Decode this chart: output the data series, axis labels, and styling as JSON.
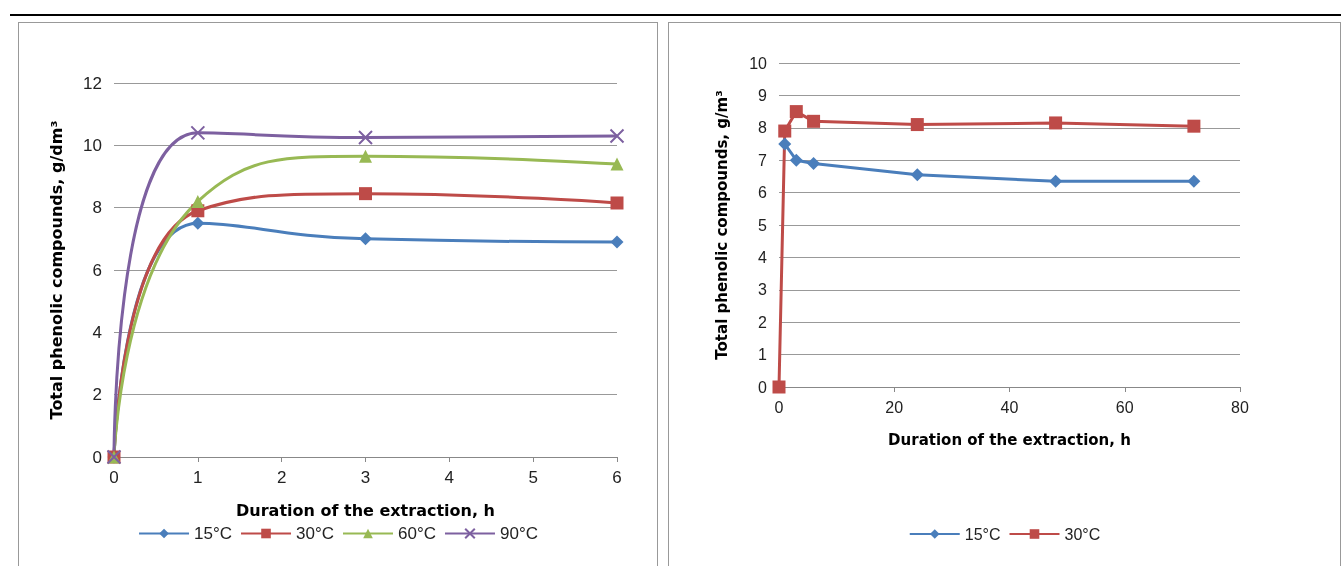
{
  "chart_data": [
    {
      "type": "line",
      "xlabel": "Duration of the extraction, h",
      "ylabel": "Total phenolic compounds, g/dm³",
      "x": [
        0,
        1,
        3,
        6
      ],
      "xlim": [
        0,
        6
      ],
      "xticks": [
        0,
        1,
        2,
        3,
        4,
        5,
        6
      ],
      "ylim": [
        0,
        12
      ],
      "yticks": [
        0,
        2,
        4,
        6,
        8,
        10,
        12
      ],
      "grid": "y",
      "legend": "bottom",
      "series": [
        {
          "name": "15°C",
          "color": "#4a7ebb",
          "marker": "diamond",
          "values": [
            0,
            7.5,
            7.0,
            6.9
          ]
        },
        {
          "name": "30°C",
          "color": "#be4b48",
          "marker": "square",
          "values": [
            0,
            7.9,
            8.45,
            8.15
          ]
        },
        {
          "name": "60°C",
          "color": "#98b954",
          "marker": "triangle",
          "values": [
            0,
            8.2,
            9.65,
            9.4
          ]
        },
        {
          "name": "90°C",
          "color": "#7d60a0",
          "marker": "cross",
          "values": [
            0,
            10.4,
            10.25,
            10.3
          ]
        }
      ]
    },
    {
      "type": "line",
      "xlabel": "Duration of the extraction, h",
      "ylabel": "Total phenolic compounds, g/m³",
      "xlim": [
        0,
        80
      ],
      "xticks": [
        0,
        20,
        40,
        60,
        80
      ],
      "ylim": [
        0,
        10
      ],
      "yticks": [
        0,
        1,
        2,
        3,
        4,
        5,
        6,
        7,
        8,
        9,
        10
      ],
      "grid": "y",
      "legend": "bottom",
      "series": [
        {
          "name": "15°C",
          "color": "#4a7ebb",
          "marker": "diamond",
          "x": [
            1,
            3,
            6,
            24,
            48,
            72
          ],
          "values": [
            7.5,
            7.0,
            6.9,
            6.55,
            6.35,
            6.35
          ]
        },
        {
          "name": "30°C",
          "color": "#be4b48",
          "marker": "square",
          "x": [
            0,
            1,
            3,
            6,
            24,
            48,
            72
          ],
          "values": [
            0,
            7.9,
            8.5,
            8.2,
            8.1,
            8.15,
            8.05
          ]
        }
      ]
    }
  ]
}
